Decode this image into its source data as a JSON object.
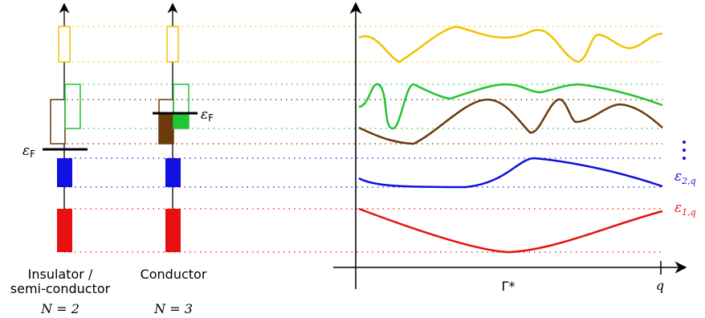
{
  "colors": {
    "yellow": "#f2c200",
    "green": "#22c534",
    "brown": "#6b3a0d",
    "blue": "#1010e0",
    "red": "#e81010",
    "axis": "#000000"
  },
  "columns": [
    {
      "label_line1": "Insulator /",
      "label_line2": "semi-conductor",
      "n_label": "N = 2"
    },
    {
      "label_line1": "Conductor",
      "label_line2": "",
      "n_label": "N = 3"
    }
  ],
  "fermi_label": "εF",
  "fermi_label_main": "ε",
  "fermi_label_sub": "F",
  "band_labels": {
    "eps1": "ε1,q",
    "eps1_main": "ε",
    "eps1_sub": "1,q",
    "eps2": "ε2,q",
    "eps2_main": "ε",
    "eps2_sub": "2,q"
  },
  "axis_labels": {
    "gamma": "Γ*",
    "q": "q"
  }
}
